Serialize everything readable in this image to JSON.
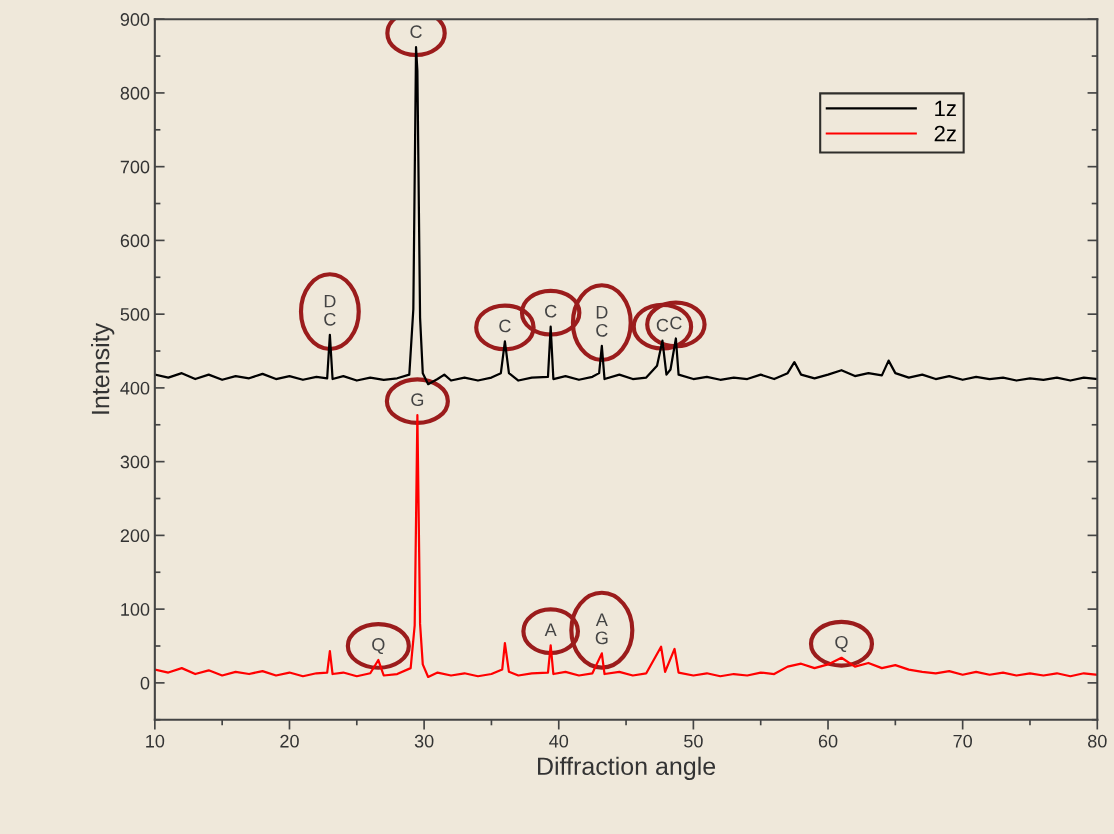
{
  "chart_data": {
    "type": "line",
    "xlabel": "Diffraction angle",
    "ylabel": "Intensity",
    "xlim": [
      10,
      80
    ],
    "ylim": [
      -50,
      900
    ],
    "xticks": [
      10,
      {
        "value": 15,
        "label": null
      },
      20,
      {
        "value": 25,
        "label": null
      },
      30,
      {
        "value": 35,
        "label": null
      },
      40,
      {
        "value": 45,
        "label": null
      },
      50,
      {
        "value": 55,
        "label": null
      },
      60,
      {
        "value": 65,
        "label": null
      },
      70,
      {
        "value": 75,
        "label": null
      },
      80
    ],
    "yticks": [
      {
        "value": -50,
        "label": null
      },
      0,
      {
        "value": 50,
        "label": null
      },
      100,
      {
        "value": 150,
        "label": null
      },
      200,
      {
        "value": 250,
        "label": null
      },
      300,
      {
        "value": 350,
        "label": null
      },
      400,
      {
        "value": 450,
        "label": null
      },
      500,
      {
        "value": 550,
        "label": null
      },
      600,
      {
        "value": 650,
        "label": null
      },
      700,
      {
        "value": 750,
        "label": null
      },
      800,
      {
        "value": 850,
        "label": null
      },
      900
    ],
    "grid": false,
    "legend": "top right",
    "line_style": "solid",
    "marker": "none",
    "series": [
      {
        "name": "1z",
        "color": "#000000",
        "x": [
          10,
          11,
          12,
          13,
          14,
          15,
          16,
          17,
          18,
          19,
          20,
          21,
          22,
          22.8,
          23.0,
          23.2,
          24,
          25,
          26,
          27,
          28,
          28.9,
          29.2,
          29.4,
          29.5,
          29.7,
          29.9,
          30.3,
          31,
          31.5,
          32,
          33,
          34,
          35,
          35.7,
          36.0,
          36.3,
          37,
          38,
          39.2,
          39.4,
          39.6,
          40.5,
          41.5,
          42.5,
          43.0,
          43.2,
          43.4,
          44.5,
          45.5,
          46.5,
          47.3,
          47.7,
          48.0,
          48.3,
          48.7,
          48.9,
          50,
          51,
          52,
          53,
          54,
          55,
          56,
          57,
          57.5,
          58,
          59,
          60,
          61,
          62,
          63,
          64,
          64.5,
          65,
          66,
          67,
          68,
          69,
          70,
          71,
          72,
          73,
          74,
          75,
          76,
          77,
          78,
          79,
          80
        ],
        "values": [
          418,
          414,
          420,
          412,
          418,
          411,
          416,
          413,
          419,
          412,
          416,
          411,
          415,
          413,
          472,
          412,
          416,
          410,
          414,
          411,
          413,
          418,
          507,
          862,
          830,
          495,
          420,
          405,
          412,
          418,
          410,
          414,
          410,
          414,
          420,
          463,
          420,
          410,
          414,
          415,
          483,
          412,
          416,
          411,
          415,
          420,
          457,
          412,
          418,
          412,
          414,
          430,
          464,
          418,
          425,
          467,
          418,
          412,
          415,
          411,
          414,
          412,
          418,
          412,
          420,
          435,
          418,
          413,
          418,
          424,
          416,
          420,
          417,
          437,
          420,
          414,
          418,
          412,
          416,
          411,
          415,
          412,
          414,
          410,
          413,
          411,
          414,
          410,
          414,
          412
        ]
      },
      {
        "name": "2z",
        "color": "#ff0000",
        "x": [
          10,
          11,
          12,
          13,
          14,
          15,
          16,
          17,
          18,
          19,
          20,
          21,
          22,
          22.8,
          23.0,
          23.2,
          24,
          25,
          26,
          26.6,
          27,
          28,
          29.0,
          29.3,
          29.5,
          29.7,
          29.9,
          30.3,
          31,
          32,
          33,
          34,
          35,
          35.8,
          36.0,
          36.3,
          37,
          38,
          39.2,
          39.4,
          39.6,
          40.5,
          41.5,
          42.5,
          43.2,
          43.4,
          44.5,
          45.5,
          46.5,
          47.6,
          47.9,
          48.6,
          48.9,
          50,
          51,
          52,
          53,
          54,
          55,
          56,
          57,
          58,
          59,
          60,
          61,
          62,
          63,
          64,
          65,
          66,
          67,
          68,
          69,
          70,
          71,
          72,
          73,
          74,
          75,
          76,
          77,
          78,
          79,
          80
        ],
        "values": [
          18,
          14,
          20,
          12,
          17,
          10,
          15,
          12,
          16,
          10,
          14,
          9,
          13,
          14,
          43,
          12,
          14,
          9,
          13,
          31,
          10,
          12,
          20,
          78,
          363,
          80,
          25,
          8,
          14,
          10,
          13,
          9,
          12,
          18,
          54,
          15,
          10,
          13,
          14,
          51,
          12,
          15,
          10,
          13,
          40,
          12,
          15,
          10,
          13,
          49,
          15,
          46,
          14,
          10,
          13,
          9,
          12,
          10,
          14,
          12,
          22,
          26,
          20,
          25,
          34,
          22,
          27,
          20,
          24,
          18,
          15,
          13,
          16,
          11,
          15,
          11,
          14,
          10,
          13,
          10,
          13,
          9,
          13,
          11
        ]
      }
    ],
    "annotations": [
      {
        "text": "D\nC",
        "x": 23.0,
        "y": 472
      },
      {
        "text": "C",
        "x": 29.4,
        "y": 862
      },
      {
        "text": "C",
        "x": 36.0,
        "y": 463
      },
      {
        "text": "C",
        "x": 39.4,
        "y": 483
      },
      {
        "text": "D\nC",
        "x": 43.2,
        "y": 457
      },
      {
        "text": "C",
        "x": 47.7,
        "y": 464
      },
      {
        "text": "C",
        "x": 48.7,
        "y": 467
      },
      {
        "text": "G",
        "x": 29.5,
        "y": 363
      },
      {
        "text": "Q",
        "x": 26.6,
        "y": 31
      },
      {
        "text": "A",
        "x": 39.4,
        "y": 51
      },
      {
        "text": "A\nG",
        "x": 43.2,
        "y": 40
      },
      {
        "text": "Q",
        "x": 61,
        "y": 34
      }
    ]
  }
}
